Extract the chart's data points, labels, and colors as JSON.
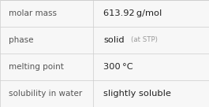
{
  "rows": [
    {
      "label": "molar mass",
      "value": "613.92 g/mol",
      "value_suffix": null
    },
    {
      "label": "phase",
      "value": "solid",
      "value_suffix": "(at STP)"
    },
    {
      "label": "melting point",
      "value": "300 °C",
      "value_suffix": null
    },
    {
      "label": "solubility in water",
      "value": "slightly soluble",
      "value_suffix": null
    }
  ],
  "background_color": "#f7f7f7",
  "border_color": "#cccccc",
  "label_color": "#555555",
  "value_color": "#222222",
  "suffix_color": "#999999",
  "label_fontsize": 7.5,
  "value_fontsize": 8.2,
  "suffix_fontsize": 6.2,
  "col_split": 0.445
}
